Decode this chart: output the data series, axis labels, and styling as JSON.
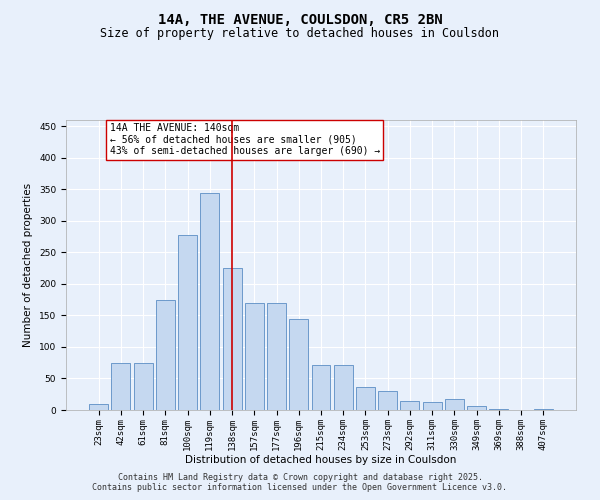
{
  "title": "14A, THE AVENUE, COULSDON, CR5 2BN",
  "subtitle": "Size of property relative to detached houses in Coulsdon",
  "xlabel": "Distribution of detached houses by size in Coulsdon",
  "ylabel": "Number of detached properties",
  "footer": "Contains HM Land Registry data © Crown copyright and database right 2025.\nContains public sector information licensed under the Open Government Licence v3.0.",
  "categories": [
    "23sqm",
    "42sqm",
    "61sqm",
    "81sqm",
    "100sqm",
    "119sqm",
    "138sqm",
    "157sqm",
    "177sqm",
    "196sqm",
    "215sqm",
    "234sqm",
    "253sqm",
    "273sqm",
    "292sqm",
    "311sqm",
    "330sqm",
    "349sqm",
    "369sqm",
    "388sqm",
    "407sqm"
  ],
  "values": [
    10,
    75,
    75,
    175,
    278,
    345,
    225,
    170,
    170,
    145,
    72,
    72,
    37,
    30,
    14,
    12,
    18,
    7,
    1,
    0,
    1
  ],
  "bar_color": "#c5d8f0",
  "bar_edge_color": "#5b8ec4",
  "bg_color": "#e8f0fb",
  "grid_color": "#ffffff",
  "vline_x": 6.0,
  "vline_color": "#cc0000",
  "annotation_text": "14A THE AVENUE: 140sqm\n← 56% of detached houses are smaller (905)\n43% of semi-detached houses are larger (690) →",
  "annotation_box_color": "#cc0000",
  "annotation_bg": "#ffffff",
  "ylim": [
    0,
    460
  ],
  "yticks": [
    0,
    50,
    100,
    150,
    200,
    250,
    300,
    350,
    400,
    450
  ],
  "title_fontsize": 10,
  "subtitle_fontsize": 8.5,
  "label_fontsize": 7.5,
  "tick_fontsize": 6.5,
  "footer_fontsize": 6,
  "ann_fontsize": 7
}
